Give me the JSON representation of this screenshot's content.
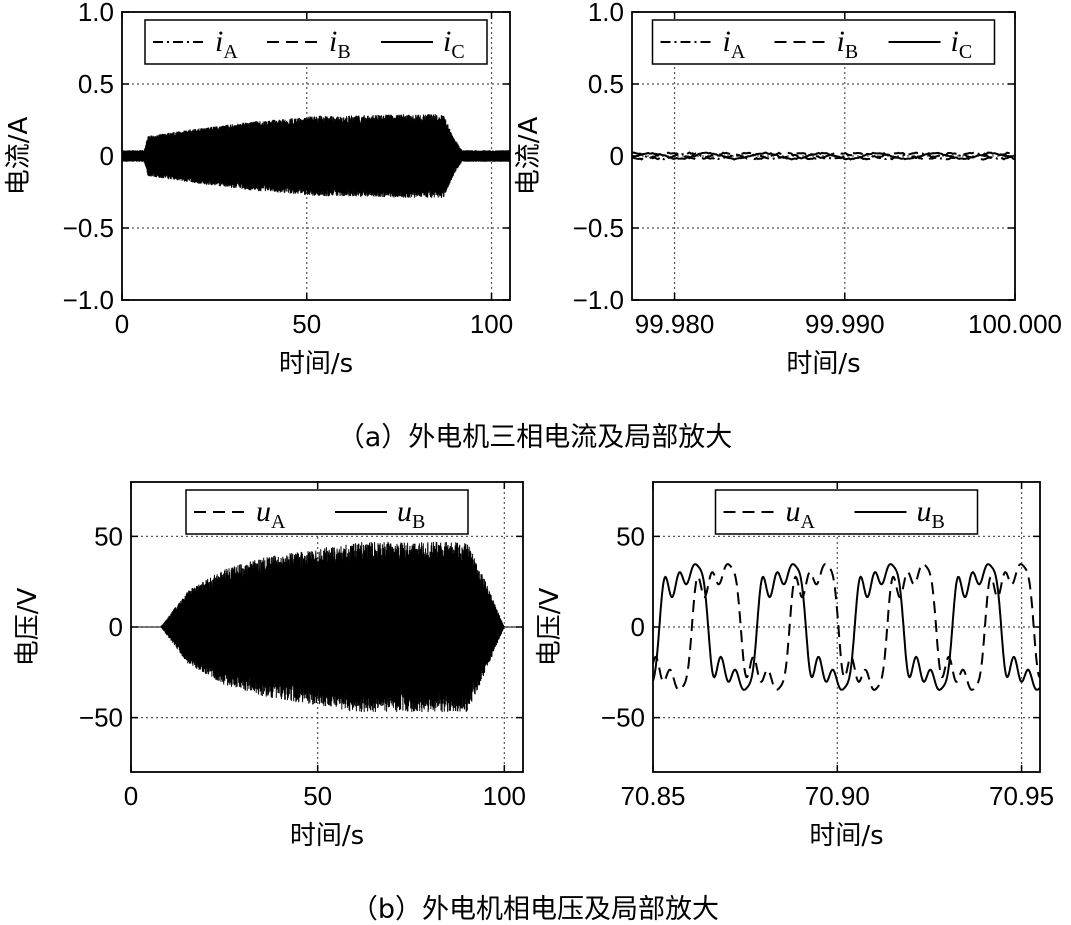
{
  "captions": {
    "a": "（a）外电机三相电流及局部放大",
    "b": "（b）外电机相电压及局部放大"
  },
  "colors": {
    "ink": "#000000",
    "grid": "#555555",
    "background": "#ffffff"
  },
  "chart_data": [
    {
      "id": "a-left",
      "type": "line",
      "xlabel": "时间/s",
      "ylabel": "电流/A",
      "xlim": [
        0,
        105
      ],
      "ylim": [
        -1.0,
        1.0
      ],
      "xticks": [
        0,
        50,
        100
      ],
      "xtick_labels": [
        "0",
        "50",
        "100"
      ],
      "yticks": [
        1.0,
        0.5,
        0,
        -0.5,
        -1.0
      ],
      "ytick_labels": [
        "1.0",
        "0.5",
        "0",
        "−0.5",
        "−1.0"
      ],
      "grid": true,
      "legend_position": "top",
      "legend": [
        "iA",
        "iB",
        "iC"
      ],
      "legend_base": [
        "i",
        "i",
        "i"
      ],
      "legend_sub": [
        "A",
        "B",
        "C"
      ],
      "series": [
        {
          "name": "iA",
          "style": "dash-dot",
          "envelope": {
            "t": [
              0,
              6,
              7,
              20,
              35,
              50,
              52,
              60,
              75,
              87,
              90,
              92,
              105
            ],
            "amp": [
              0.04,
              0.04,
              0.14,
              0.19,
              0.24,
              0.27,
              0.28,
              0.28,
              0.29,
              0.29,
              0.12,
              0.04,
              0.04
            ]
          }
        },
        {
          "name": "iB",
          "style": "dash",
          "envelope": {
            "t": [
              0,
              6,
              7,
              20,
              35,
              50,
              52,
              60,
              75,
              87,
              90,
              92,
              105
            ],
            "amp": [
              0.04,
              0.04,
              0.14,
              0.19,
              0.24,
              0.27,
              0.28,
              0.28,
              0.29,
              0.29,
              0.12,
              0.04,
              0.04
            ]
          }
        },
        {
          "name": "iC",
          "style": "solid",
          "envelope": {
            "t": [
              0,
              6,
              7,
              20,
              35,
              50,
              52,
              60,
              75,
              87,
              90,
              92,
              105
            ],
            "amp": [
              0.04,
              0.04,
              0.14,
              0.19,
              0.24,
              0.27,
              0.28,
              0.28,
              0.29,
              0.29,
              0.12,
              0.04,
              0.04
            ]
          }
        }
      ]
    },
    {
      "id": "a-right",
      "type": "line",
      "xlabel": "时间/s",
      "ylabel": "电流/A",
      "xlim": [
        99.9775,
        100.0
      ],
      "ylim": [
        -1.0,
        1.0
      ],
      "xticks": [
        99.98,
        99.99,
        100.0
      ],
      "xtick_labels": [
        "99.980",
        "99.990",
        "100.000"
      ],
      "yticks": [
        1.0,
        0.5,
        0,
        -0.5,
        -1.0
      ],
      "ytick_labels": [
        "1.0",
        "0.5",
        "0",
        "−0.5",
        "−1.0"
      ],
      "grid": true,
      "legend_position": "top",
      "legend": [
        "iA",
        "iB",
        "iC"
      ],
      "legend_base": [
        "i",
        "i",
        "i"
      ],
      "legend_sub": [
        "A",
        "B",
        "C"
      ],
      "series": [
        {
          "name": "iA",
          "style": "dash-dot",
          "amplitude": 0.02,
          "frequency_hz": 300,
          "phase_deg": 0
        },
        {
          "name": "iB",
          "style": "dash",
          "amplitude": 0.02,
          "frequency_hz": 300,
          "phase_deg": 120
        },
        {
          "name": "iC",
          "style": "solid",
          "amplitude": 0.02,
          "frequency_hz": 300,
          "phase_deg": 240
        }
      ]
    },
    {
      "id": "b-left",
      "type": "line",
      "xlabel": "时间/s",
      "ylabel": "电压/V",
      "xlim": [
        0,
        105
      ],
      "ylim": [
        -80,
        80
      ],
      "xticks": [
        0,
        50,
        100
      ],
      "xtick_labels": [
        "0",
        "50",
        "100"
      ],
      "yticks": [
        50,
        0,
        -50
      ],
      "ytick_labels": [
        "50",
        "0",
        "−50"
      ],
      "grid": true,
      "legend_position": "top",
      "legend": [
        "uA",
        "uB"
      ],
      "legend_base": [
        "u",
        "u"
      ],
      "legend_sub": [
        "A",
        "B"
      ],
      "series": [
        {
          "name": "uA",
          "style": "dash",
          "envelope": {
            "t": [
              0,
              8,
              15,
              25,
              35,
              45,
              55,
              60,
              75,
              90,
              95,
              100,
              105
            ],
            "amp": [
              0,
              0,
              20,
              32,
              38,
              42,
              45,
              47,
              47,
              47,
              25,
              0,
              0
            ]
          }
        },
        {
          "name": "uB",
          "style": "solid",
          "envelope": {
            "t": [
              0,
              8,
              15,
              25,
              35,
              45,
              55,
              60,
              75,
              90,
              95,
              100,
              105
            ],
            "amp": [
              0,
              0,
              20,
              32,
              38,
              42,
              45,
              47,
              47,
              47,
              25,
              0,
              0
            ]
          }
        }
      ]
    },
    {
      "id": "b-right",
      "type": "line",
      "xlabel": "时间/s",
      "ylabel": "电压/V",
      "xlim": [
        70.85,
        70.955
      ],
      "ylim": [
        -80,
        80
      ],
      "xticks": [
        70.85,
        70.9,
        70.95
      ],
      "xtick_labels": [
        "70.85",
        "70.90",
        "70.95"
      ],
      "yticks": [
        50,
        0,
        -50
      ],
      "ytick_labels": [
        "50",
        "0",
        "−50"
      ],
      "grid": true,
      "legend_position": "top",
      "legend": [
        "uA",
        "uB"
      ],
      "legend_base": [
        "u",
        "u"
      ],
      "legend_sub": [
        "A",
        "B"
      ],
      "series": [
        {
          "name": "uA",
          "style": "dash",
          "period_s": 0.0265,
          "amplitude": 46,
          "phase_deg": 0
        },
        {
          "name": "uB",
          "style": "solid",
          "period_s": 0.0265,
          "amplitude": 46,
          "phase_deg": 120
        }
      ]
    }
  ]
}
